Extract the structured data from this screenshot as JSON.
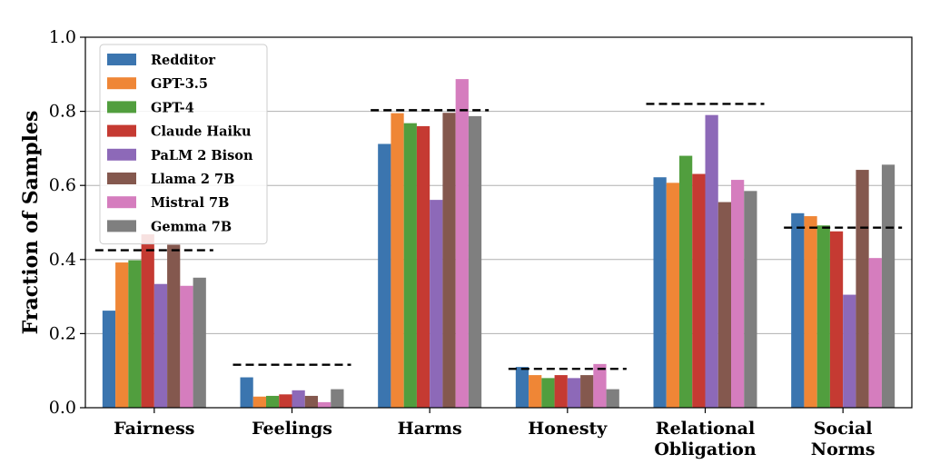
{
  "chart_data": {
    "type": "bar",
    "ylabel": "Fraction of Samples",
    "ylim": [
      0,
      1.0
    ],
    "yticks": [
      "0.0",
      "0.2",
      "0.4",
      "0.6",
      "0.8",
      "1.0"
    ],
    "grid": "horizontal",
    "legend_position": "top-left",
    "categories": [
      [
        "Fairness"
      ],
      [
        "Feelings"
      ],
      [
        "Harms"
      ],
      [
        "Honesty"
      ],
      [
        "Relational",
        "Obligation"
      ],
      [
        "Social",
        "Norms"
      ]
    ],
    "series": [
      {
        "name": "Redditor",
        "color": "#3b75af",
        "values": [
          0.262,
          0.082,
          0.712,
          0.11,
          0.622,
          0.525
        ]
      },
      {
        "name": "GPT-3.5",
        "color": "#ef8636",
        "values": [
          0.392,
          0.03,
          0.795,
          0.088,
          0.607,
          0.517
        ]
      },
      {
        "name": "GPT-4",
        "color": "#519e3e",
        "values": [
          0.398,
          0.032,
          0.768,
          0.08,
          0.68,
          0.492
        ]
      },
      {
        "name": "Claude Haiku",
        "color": "#c53a32",
        "values": [
          0.468,
          0.036,
          0.76,
          0.088,
          0.631,
          0.476
        ]
      },
      {
        "name": "PaLM 2 Bison",
        "color": "#8d69b8",
        "values": [
          0.334,
          0.047,
          0.561,
          0.08,
          0.79,
          0.305
        ]
      },
      {
        "name": "Llama 2 7B",
        "color": "#84584e",
        "values": [
          0.44,
          0.032,
          0.796,
          0.088,
          0.555,
          0.642
        ]
      },
      {
        "name": "Mistral 7B",
        "color": "#d57dbe",
        "values": [
          0.329,
          0.015,
          0.887,
          0.118,
          0.615,
          0.404
        ]
      },
      {
        "name": "Gemma 7B",
        "color": "#7f7f7f",
        "values": [
          0.351,
          0.05,
          0.787,
          0.05,
          0.585,
          0.656
        ]
      }
    ],
    "reference_lines": [
      0.425,
      0.116,
      0.803,
      0.105,
      0.82,
      0.486
    ]
  }
}
